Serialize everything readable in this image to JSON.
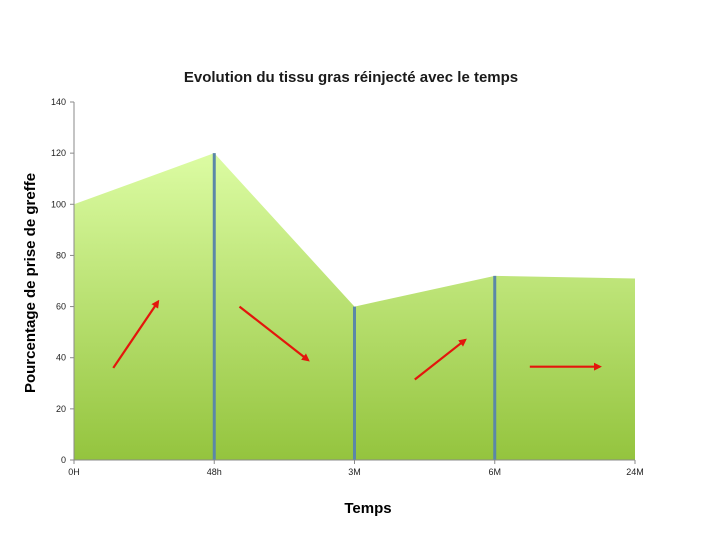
{
  "chart_data": {
    "type": "area",
    "title": "Evolution du tissu gras réinjecté avec le temps",
    "xlabel": "Temps",
    "ylabel": "Pourcentage de prise de greffe",
    "categories": [
      "0H",
      "48h",
      "3M",
      "6M",
      "24M"
    ],
    "values": [
      100,
      120,
      60,
      72,
      71
    ],
    "ylim": [
      0,
      140
    ],
    "yticks": [
      "0",
      "20",
      "40",
      "60",
      "80",
      "100",
      "120",
      "140"
    ],
    "grid": false,
    "legend": "none",
    "colors": {
      "fill_top": "#dcfca3",
      "fill_bottom": "#94c43e",
      "marker_line": "#5b87a8",
      "arrow": "#e3160c",
      "axis": "#8a8a8a"
    },
    "trend_arrows": [
      {
        "direction": "up",
        "from_category": "0H",
        "to_category": "48h"
      },
      {
        "direction": "down",
        "from_category": "48h",
        "to_category": "3M"
      },
      {
        "direction": "up",
        "from_category": "3M",
        "to_category": "6M"
      },
      {
        "direction": "flat",
        "from_category": "6M",
        "to_category": "24M"
      }
    ]
  }
}
